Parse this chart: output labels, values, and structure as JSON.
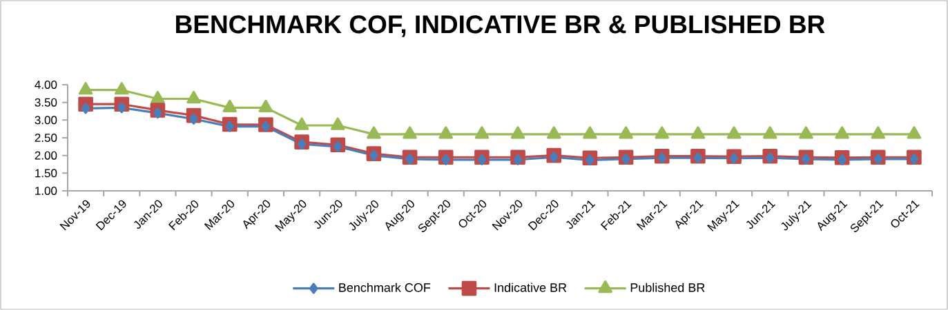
{
  "chart_data": {
    "type": "line",
    "title": "BENCHMARK COF, INDICATIVE BR & PUBLISHED BR",
    "categories": [
      "Nov-19",
      "Dec-19",
      "Jan-20",
      "Feb-20",
      "Mar-20",
      "Apr-20",
      "May-20",
      "Jun-20",
      "July-20",
      "Aug-20",
      "Sept-20",
      "Oct-20",
      "Nov-20",
      "Dec-20",
      "Jan-21",
      "Feb-21",
      "Mar-21",
      "Apr-21",
      "May-21",
      "Jun-21",
      "July-21",
      "Aug-21",
      "Sept-21",
      "Oct-21"
    ],
    "series": [
      {
        "name": "Benchmark COF",
        "color": "#4a7ebb",
        "marker": "diamond",
        "values": [
          3.33,
          3.35,
          3.2,
          3.03,
          2.82,
          2.82,
          2.32,
          2.25,
          2.0,
          1.9,
          1.88,
          1.88,
          1.88,
          1.95,
          1.87,
          1.9,
          1.93,
          1.93,
          1.92,
          1.93,
          1.9,
          1.88,
          1.9,
          1.9
        ]
      },
      {
        "name": "Indicative BR",
        "color": "#be4b48",
        "marker": "square",
        "values": [
          3.45,
          3.45,
          3.28,
          3.13,
          2.88,
          2.87,
          2.38,
          2.3,
          2.05,
          1.95,
          1.95,
          1.95,
          1.95,
          2.0,
          1.93,
          1.95,
          1.98,
          1.98,
          1.97,
          1.98,
          1.95,
          1.94,
          1.95,
          1.95
        ]
      },
      {
        "name": "Published BR",
        "color": "#98b954",
        "marker": "triangle",
        "values": [
          3.85,
          3.85,
          3.6,
          3.6,
          3.35,
          3.35,
          2.85,
          2.85,
          2.6,
          2.6,
          2.6,
          2.6,
          2.6,
          2.6,
          2.6,
          2.6,
          2.6,
          2.6,
          2.6,
          2.6,
          2.6,
          2.6,
          2.6,
          2.6
        ]
      }
    ],
    "ylim": [
      1,
      4
    ],
    "yticks": [
      {
        "value": 1,
        "label": "1.00"
      },
      {
        "value": 1.5,
        "label": "1.50"
      },
      {
        "value": 2,
        "label": "2.00"
      },
      {
        "value": 2.5,
        "label": "2.50"
      },
      {
        "value": 3,
        "label": "3.00"
      },
      {
        "value": 3.5,
        "label": "3.50"
      },
      {
        "value": 4,
        "label": "4.00"
      }
    ],
    "grid": false,
    "legend": "bottom",
    "line_style": "solid"
  }
}
